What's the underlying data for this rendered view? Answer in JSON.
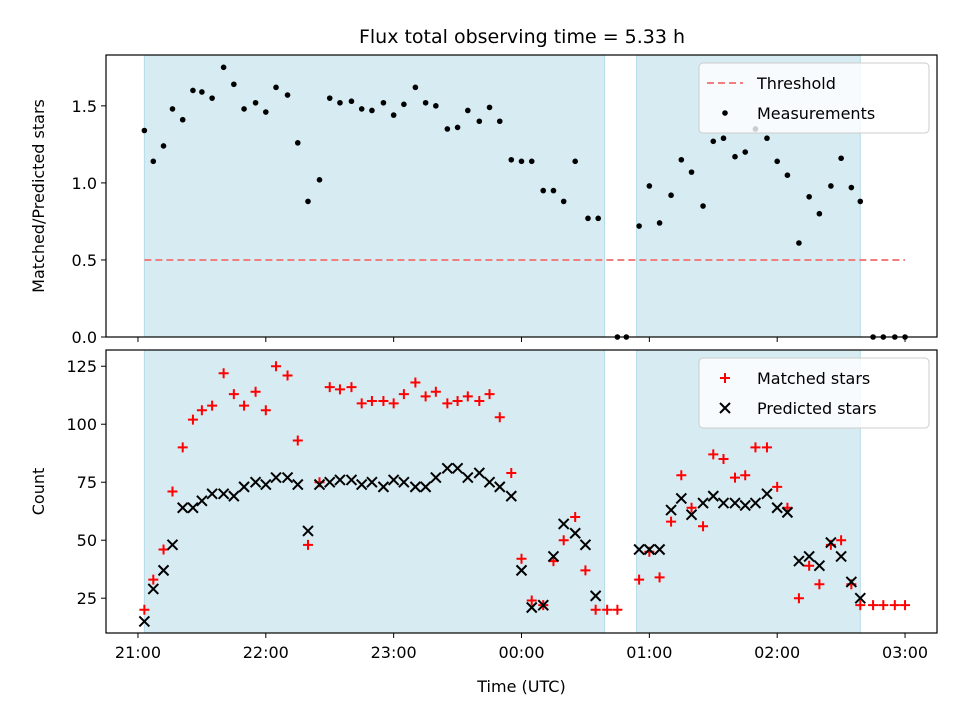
{
  "title": "Flux total observing time = 5.33 h",
  "chart_data": [
    {
      "type": "scatter",
      "ylabel": "Matched/Predicted stars",
      "xlabel": "",
      "xlim": [
        20.75,
        27.25
      ],
      "ylim": [
        0,
        1.83
      ],
      "yticks": [
        0,
        0.5,
        1.0,
        1.5
      ],
      "ytick_labels": [
        "0.0",
        "0.5",
        "1.0",
        "1.5"
      ],
      "legend_position": "top-right",
      "shaded_intervals": [
        [
          21.05,
          24.65
        ],
        [
          24.9,
          26.65
        ]
      ],
      "threshold": {
        "name": "Threshold",
        "value": 0.5,
        "x_range": [
          21.05,
          27.0
        ],
        "color": "#f08080",
        "style": "dashed"
      },
      "series": [
        {
          "name": "Measurements",
          "color": "#000000",
          "marker": "dot",
          "points": [
            [
              21.05,
              1.34
            ],
            [
              21.12,
              1.14
            ],
            [
              21.2,
              1.24
            ],
            [
              21.27,
              1.48
            ],
            [
              21.35,
              1.41
            ],
            [
              21.43,
              1.6
            ],
            [
              21.5,
              1.59
            ],
            [
              21.58,
              1.55
            ],
            [
              21.67,
              1.75
            ],
            [
              21.75,
              1.64
            ],
            [
              21.83,
              1.48
            ],
            [
              21.92,
              1.52
            ],
            [
              22.0,
              1.46
            ],
            [
              22.08,
              1.62
            ],
            [
              22.17,
              1.57
            ],
            [
              22.25,
              1.26
            ],
            [
              22.33,
              0.88
            ],
            [
              22.42,
              1.02
            ],
            [
              22.5,
              1.55
            ],
            [
              22.58,
              1.52
            ],
            [
              22.67,
              1.53
            ],
            [
              22.75,
              1.48
            ],
            [
              22.83,
              1.47
            ],
            [
              22.92,
              1.52
            ],
            [
              23.0,
              1.44
            ],
            [
              23.08,
              1.51
            ],
            [
              23.17,
              1.62
            ],
            [
              23.25,
              1.52
            ],
            [
              23.33,
              1.5
            ],
            [
              23.42,
              1.35
            ],
            [
              23.5,
              1.36
            ],
            [
              23.58,
              1.47
            ],
            [
              23.67,
              1.4
            ],
            [
              23.75,
              1.49
            ],
            [
              23.83,
              1.4
            ],
            [
              23.92,
              1.15
            ],
            [
              24.0,
              1.14
            ],
            [
              24.08,
              1.14
            ],
            [
              24.17,
              0.95
            ],
            [
              24.25,
              0.95
            ],
            [
              24.33,
              0.88
            ],
            [
              24.42,
              1.14
            ],
            [
              24.52,
              0.77
            ],
            [
              24.6,
              0.77
            ],
            [
              24.75,
              0.0
            ],
            [
              24.82,
              0.0
            ],
            [
              24.92,
              0.72
            ],
            [
              25.0,
              0.98
            ],
            [
              25.08,
              0.74
            ],
            [
              25.17,
              0.92
            ],
            [
              25.25,
              1.15
            ],
            [
              25.33,
              1.07
            ],
            [
              25.42,
              0.85
            ],
            [
              25.5,
              1.27
            ],
            [
              25.58,
              1.29
            ],
            [
              25.67,
              1.17
            ],
            [
              25.75,
              1.2
            ],
            [
              25.83,
              1.35
            ],
            [
              25.92,
              1.29
            ],
            [
              26.0,
              1.14
            ],
            [
              26.08,
              1.05
            ],
            [
              26.17,
              0.61
            ],
            [
              26.25,
              0.91
            ],
            [
              26.33,
              0.8
            ],
            [
              26.42,
              0.98
            ],
            [
              26.5,
              1.16
            ],
            [
              26.58,
              0.97
            ],
            [
              26.65,
              0.88
            ],
            [
              26.75,
              0.0
            ],
            [
              26.83,
              0.0
            ],
            [
              26.92,
              0.0
            ],
            [
              27.0,
              0.0
            ]
          ]
        }
      ]
    },
    {
      "type": "scatter",
      "ylabel": "Count",
      "xlabel": "Time (UTC)",
      "xlim": [
        20.75,
        27.25
      ],
      "ylim": [
        10,
        132
      ],
      "xticks": [
        21,
        22,
        23,
        24,
        25,
        26,
        27
      ],
      "xtick_labels": [
        "21:00",
        "22:00",
        "23:00",
        "00:00",
        "01:00",
        "02:00",
        "03:00"
      ],
      "yticks": [
        25,
        50,
        75,
        100,
        125
      ],
      "ytick_labels": [
        "25",
        "50",
        "75",
        "100",
        "125"
      ],
      "legend_position": "top-right",
      "shaded_intervals": [
        [
          21.05,
          24.65
        ],
        [
          24.9,
          26.65
        ]
      ],
      "series": [
        {
          "name": "Matched stars",
          "color": "#ff0000",
          "marker": "plus",
          "points": [
            [
              21.05,
              20
            ],
            [
              21.12,
              33
            ],
            [
              21.2,
              46
            ],
            [
              21.27,
              71
            ],
            [
              21.35,
              90
            ],
            [
              21.43,
              102
            ],
            [
              21.5,
              106
            ],
            [
              21.58,
              108
            ],
            [
              21.67,
              122
            ],
            [
              21.75,
              113
            ],
            [
              21.83,
              108
            ],
            [
              21.92,
              114
            ],
            [
              22.0,
              106
            ],
            [
              22.08,
              125
            ],
            [
              22.17,
              121
            ],
            [
              22.25,
              93
            ],
            [
              22.33,
              48
            ],
            [
              22.42,
              75
            ],
            [
              22.5,
              116
            ],
            [
              22.58,
              115
            ],
            [
              22.67,
              116
            ],
            [
              22.75,
              109
            ],
            [
              22.83,
              110
            ],
            [
              22.92,
              110
            ],
            [
              23.0,
              109
            ],
            [
              23.08,
              113
            ],
            [
              23.17,
              118
            ],
            [
              23.25,
              112
            ],
            [
              23.33,
              114
            ],
            [
              23.42,
              109
            ],
            [
              23.5,
              110
            ],
            [
              23.58,
              112
            ],
            [
              23.67,
              110
            ],
            [
              23.75,
              113
            ],
            [
              23.83,
              103
            ],
            [
              23.92,
              79
            ],
            [
              24.0,
              42
            ],
            [
              24.08,
              24
            ],
            [
              24.17,
              22
            ],
            [
              24.25,
              41
            ],
            [
              24.33,
              50
            ],
            [
              24.42,
              60
            ],
            [
              24.5,
              37
            ],
            [
              24.58,
              20
            ],
            [
              24.67,
              20
            ],
            [
              24.75,
              20
            ],
            [
              24.92,
              33
            ],
            [
              25.0,
              45
            ],
            [
              25.08,
              34
            ],
            [
              25.17,
              58
            ],
            [
              25.25,
              78
            ],
            [
              25.33,
              64
            ],
            [
              25.42,
              56
            ],
            [
              25.5,
              87
            ],
            [
              25.58,
              85
            ],
            [
              25.67,
              77
            ],
            [
              25.75,
              78
            ],
            [
              25.83,
              90
            ],
            [
              25.92,
              90
            ],
            [
              26.0,
              73
            ],
            [
              26.08,
              64
            ],
            [
              26.17,
              25
            ],
            [
              26.25,
              39
            ],
            [
              26.33,
              31
            ],
            [
              26.42,
              48
            ],
            [
              26.5,
              50
            ],
            [
              26.58,
              31
            ],
            [
              26.65,
              22
            ],
            [
              26.75,
              22
            ],
            [
              26.83,
              22
            ],
            [
              26.92,
              22
            ],
            [
              27.0,
              22
            ]
          ]
        },
        {
          "name": "Predicted stars",
          "color": "#000000",
          "marker": "x",
          "points": [
            [
              21.05,
              15
            ],
            [
              21.12,
              29
            ],
            [
              21.2,
              37
            ],
            [
              21.27,
              48
            ],
            [
              21.35,
              64
            ],
            [
              21.43,
              64
            ],
            [
              21.5,
              67
            ],
            [
              21.58,
              70
            ],
            [
              21.67,
              70
            ],
            [
              21.75,
              69
            ],
            [
              21.83,
              73
            ],
            [
              21.92,
              75
            ],
            [
              22.0,
              74
            ],
            [
              22.08,
              77
            ],
            [
              22.17,
              77
            ],
            [
              22.25,
              74
            ],
            [
              22.33,
              54
            ],
            [
              22.42,
              74
            ],
            [
              22.5,
              75
            ],
            [
              22.58,
              76
            ],
            [
              22.67,
              76
            ],
            [
              22.75,
              74
            ],
            [
              22.83,
              75
            ],
            [
              22.92,
              73
            ],
            [
              23.0,
              76
            ],
            [
              23.08,
              75
            ],
            [
              23.17,
              73
            ],
            [
              23.25,
              73
            ],
            [
              23.33,
              77
            ],
            [
              23.42,
              81
            ],
            [
              23.5,
              81
            ],
            [
              23.58,
              77
            ],
            [
              23.67,
              79
            ],
            [
              23.75,
              75
            ],
            [
              23.83,
              73
            ],
            [
              23.92,
              69
            ],
            [
              24.0,
              37
            ],
            [
              24.08,
              21
            ],
            [
              24.17,
              22
            ],
            [
              24.25,
              43
            ],
            [
              24.33,
              57
            ],
            [
              24.42,
              53
            ],
            [
              24.5,
              48
            ],
            [
              24.58,
              26
            ],
            [
              24.92,
              46
            ],
            [
              25.0,
              46
            ],
            [
              25.08,
              46
            ],
            [
              25.17,
              63
            ],
            [
              25.25,
              68
            ],
            [
              25.33,
              61
            ],
            [
              25.42,
              66
            ],
            [
              25.5,
              69
            ],
            [
              25.58,
              66
            ],
            [
              25.67,
              66
            ],
            [
              25.75,
              65
            ],
            [
              25.83,
              66
            ],
            [
              25.92,
              70
            ],
            [
              26.0,
              64
            ],
            [
              26.08,
              62
            ],
            [
              26.17,
              41
            ],
            [
              26.25,
              43
            ],
            [
              26.33,
              39
            ],
            [
              26.42,
              49
            ],
            [
              26.5,
              43
            ],
            [
              26.58,
              32
            ],
            [
              26.65,
              25
            ]
          ]
        }
      ]
    }
  ]
}
